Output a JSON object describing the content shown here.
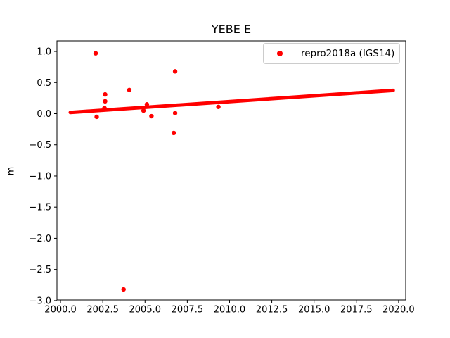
{
  "chart_data": {
    "type": "scatter",
    "title": "YEBE E",
    "xlabel": "",
    "ylabel": "m",
    "grid": false,
    "xlim": [
      1999.79,
      2020.42
    ],
    "ylim": [
      -2.99,
      1.17
    ],
    "xticks": [
      {
        "value": 2000.0,
        "label": "2000.0"
      },
      {
        "value": 2002.5,
        "label": "2002.5"
      },
      {
        "value": 2005.0,
        "label": "2005.0"
      },
      {
        "value": 2007.5,
        "label": "2007.5"
      },
      {
        "value": 2010.0,
        "label": "2010.0"
      },
      {
        "value": 2012.5,
        "label": "2012.5"
      },
      {
        "value": 2015.0,
        "label": "2015.0"
      },
      {
        "value": 2017.5,
        "label": "2017.5"
      },
      {
        "value": 2020.0,
        "label": "2020.0"
      }
    ],
    "yticks": [
      {
        "value": 1.0,
        "label": "1.0"
      },
      {
        "value": 0.5,
        "label": "0.5"
      },
      {
        "value": 0.0,
        "label": "0.0"
      },
      {
        "value": -0.5,
        "label": "−0.5"
      },
      {
        "value": -1.0,
        "label": "−1.0"
      },
      {
        "value": -1.5,
        "label": "−1.5"
      },
      {
        "value": -2.0,
        "label": "−2.0"
      },
      {
        "value": -2.5,
        "label": "−2.5"
      },
      {
        "value": -3.0,
        "label": "−3.0"
      }
    ],
    "legend": {
      "position": "upper right",
      "entries": [
        {
          "label": "repro2018a (IGS14)",
          "marker": "dot",
          "color": "#ff0000"
        }
      ]
    },
    "series": [
      {
        "name": "repro2018a (IGS14)",
        "color": "#ff0000",
        "dense_trend_band": {
          "description": "densely overlapping daily points forming a thick straight line",
          "x": [
            2000.58,
            2019.68
          ],
          "y": [
            0.02,
            0.375
          ]
        },
        "outliers": [
          {
            "x": 2002.08,
            "y": 0.97
          },
          {
            "x": 2002.14,
            "y": -0.05
          },
          {
            "x": 2002.6,
            "y": 0.09
          },
          {
            "x": 2002.64,
            "y": 0.2
          },
          {
            "x": 2002.64,
            "y": 0.31
          },
          {
            "x": 2003.73,
            "y": -2.82
          },
          {
            "x": 2004.07,
            "y": 0.38
          },
          {
            "x": 2004.91,
            "y": 0.05
          },
          {
            "x": 2005.11,
            "y": 0.15
          },
          {
            "x": 2005.38,
            "y": -0.04
          },
          {
            "x": 2006.7,
            "y": -0.31
          },
          {
            "x": 2006.78,
            "y": 0.68
          },
          {
            "x": 2006.78,
            "y": 0.01
          },
          {
            "x": 2009.34,
            "y": 0.11
          }
        ]
      }
    ],
    "axis_color": "#000000",
    "background_color": "#ffffff"
  }
}
